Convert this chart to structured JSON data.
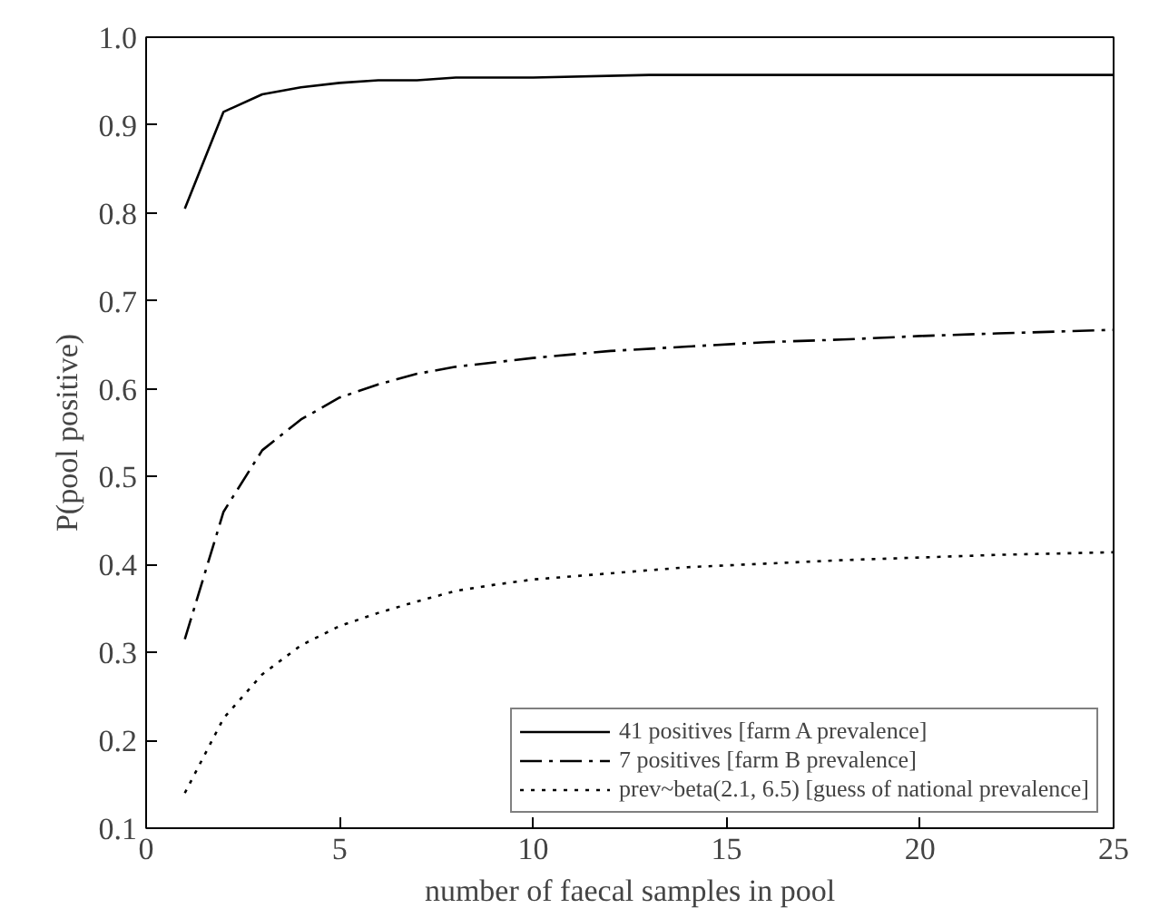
{
  "chart_data": {
    "type": "line",
    "xlabel": "number of faecal samples in pool",
    "ylabel": "P(pool positive)",
    "xlim": [
      0,
      25
    ],
    "ylim": [
      0.1,
      1.0
    ],
    "xticks": [
      0,
      5,
      10,
      15,
      20,
      25
    ],
    "yticks": [
      0.1,
      0.2,
      0.3,
      0.4,
      0.5,
      0.6,
      0.7,
      0.8,
      0.9,
      {
        "value": 1.0,
        "label": "1.0"
      }
    ],
    "grid": false,
    "legend": "bottom right",
    "marker": "none",
    "series": [
      {
        "name": "41 positives [farm A prevalence]",
        "color": "#000000",
        "line_style": "solid",
        "x": [
          1,
          2,
          3,
          4,
          5,
          6,
          7,
          8,
          10,
          13,
          16,
          20,
          25
        ],
        "values": [
          0.805,
          0.915,
          0.935,
          0.943,
          0.948,
          0.951,
          0.951,
          0.954,
          0.954,
          0.957,
          0.957,
          0.957,
          0.957
        ]
      },
      {
        "name": "7 positives [farm B prevalence]",
        "color": "#000000",
        "line_style": "dashdot",
        "x": [
          1,
          2,
          3,
          4,
          5,
          6,
          7,
          8,
          9,
          10,
          12,
          14,
          16,
          18,
          20,
          22,
          25
        ],
        "values": [
          0.315,
          0.46,
          0.53,
          0.565,
          0.59,
          0.605,
          0.617,
          0.625,
          0.63,
          0.635,
          0.643,
          0.648,
          0.653,
          0.656,
          0.66,
          0.663,
          0.667
        ]
      },
      {
        "name": "prev~beta(2.1, 6.5) [guess of national prevalence]",
        "color": "#000000",
        "line_style": "dotted",
        "x": [
          1,
          2,
          3,
          4,
          5,
          6,
          7,
          8,
          9,
          10,
          12,
          14,
          16,
          18,
          20,
          22,
          25
        ],
        "values": [
          0.14,
          0.225,
          0.275,
          0.308,
          0.33,
          0.345,
          0.358,
          0.37,
          0.377,
          0.383,
          0.39,
          0.397,
          0.401,
          0.405,
          0.408,
          0.411,
          0.414
        ]
      }
    ]
  }
}
